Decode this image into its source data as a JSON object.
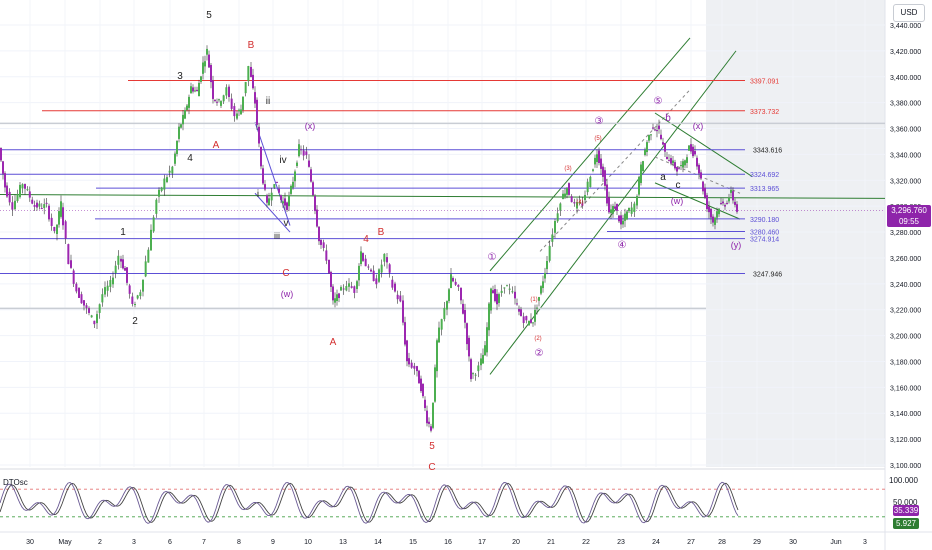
{
  "currency": "USD",
  "colors": {
    "up": "#4caf50",
    "down": "#9c27b0",
    "red_line": "#e53935",
    "blue_line": "#5c4fd6",
    "green_line": "#2e7d32",
    "wave_black": "#222222",
    "wave_red": "#d32f2f",
    "wave_purple": "#8e24aa",
    "price_tag": "#8e24aa",
    "osc_k": "#6b5b95",
    "osc_d": "#444444",
    "osc_tag_purple": "#8e24aa",
    "osc_tag_green": "#2e7d32"
  },
  "price_axis": {
    "min": 3100,
    "max": 3440,
    "step": 20,
    "ticks": [
      "3,440.000",
      "3,420.000",
      "3,400.000",
      "3,380.000",
      "3,360.000",
      "3,340.000",
      "3,320.000",
      "3,300.000",
      "3,280.000",
      "3,260.000",
      "3,240.000",
      "3,220.000",
      "3,200.000",
      "3,180.000",
      "3,160.000",
      "3,140.000",
      "3,120.000",
      "3,100.000"
    ]
  },
  "time_axis": {
    "labels": [
      "30",
      "May",
      "2",
      "3",
      "6",
      "7",
      "8",
      "9",
      "10",
      "13",
      "14",
      "15",
      "16",
      "17",
      "20",
      "21",
      "22",
      "23",
      "24",
      "27",
      "28",
      "29",
      "30",
      "Jun",
      "3"
    ]
  },
  "current_price": {
    "value": 3296.76,
    "label": "3,296.760",
    "countdown": "09:55"
  },
  "level_lines": [
    {
      "label": "3397.091",
      "value": 3397.091,
      "color": "red"
    },
    {
      "label": "3373.732",
      "value": 3373.732,
      "color": "red"
    },
    {
      "label": "3343.616",
      "value": 3343.616,
      "color": "blue"
    },
    {
      "label": "3324.692",
      "value": 3324.692,
      "color": "blue"
    },
    {
      "label": "3313.965",
      "value": 3313.965,
      "color": "blue"
    },
    {
      "label": "3290.180",
      "value": 3290.18,
      "color": "blue"
    },
    {
      "label": "3280.460",
      "value": 3280.46,
      "color": "blue"
    },
    {
      "label": "3274.914",
      "value": 3274.914,
      "color": "blue"
    },
    {
      "label": "3247.946",
      "value": 3247.946,
      "color": "blue"
    }
  ],
  "wave_labels": [
    {
      "text": "5",
      "color": "black"
    },
    {
      "text": "3",
      "color": "black"
    },
    {
      "text": "4",
      "color": "black"
    },
    {
      "text": "1",
      "color": "black"
    },
    {
      "text": "2",
      "color": "black"
    },
    {
      "text": "B",
      "color": "red"
    },
    {
      "text": "A",
      "color": "red"
    },
    {
      "text": "C",
      "color": "red"
    },
    {
      "text": "ii",
      "color": "black"
    },
    {
      "text": "iv",
      "color": "black"
    },
    {
      "text": "i",
      "color": "black"
    },
    {
      "text": "v",
      "color": "black"
    },
    {
      "text": "iii",
      "color": "black"
    },
    {
      "text": "(x)",
      "color": "purple"
    },
    {
      "text": "(w)",
      "color": "purple"
    },
    {
      "text": "4",
      "color": "red"
    },
    {
      "text": "B",
      "color": "red"
    },
    {
      "text": "A",
      "color": "red"
    },
    {
      "text": "5",
      "color": "red"
    },
    {
      "text": "C",
      "color": "red"
    },
    {
      "text": "①",
      "color": "purple"
    },
    {
      "text": "②",
      "color": "purple"
    },
    {
      "text": "③",
      "color": "purple"
    },
    {
      "text": "④",
      "color": "purple"
    },
    {
      "text": "⑤",
      "color": "purple"
    },
    {
      "text": "(1)",
      "color": "red"
    },
    {
      "text": "(2)",
      "color": "red"
    },
    {
      "text": "(3)",
      "color": "red"
    },
    {
      "text": "(4)",
      "color": "red"
    },
    {
      "text": "(5)",
      "color": "red"
    },
    {
      "text": "a",
      "color": "black"
    },
    {
      "text": "b",
      "color": "purple"
    },
    {
      "text": "c",
      "color": "black"
    },
    {
      "text": "(x)",
      "color": "purple"
    },
    {
      "text": "(w)",
      "color": "purple"
    },
    {
      "text": "(y)",
      "color": "purple"
    }
  ],
  "oscillator": {
    "name": "DTOsc",
    "levels": [
      "100.000",
      "50.000"
    ],
    "value_k": "35.339",
    "value_d": "5.927"
  },
  "chart_data": {
    "type": "candlestick",
    "instrument_currency": "USD",
    "ylim": [
      3100,
      3440
    ],
    "path_points": [
      [
        0,
        3345
      ],
      [
        6,
        3315
      ],
      [
        14,
        3300
      ],
      [
        24,
        3318
      ],
      [
        36,
        3300
      ],
      [
        48,
        3300
      ],
      [
        56,
        3278
      ],
      [
        62,
        3302
      ],
      [
        70,
        3258
      ],
      [
        78,
        3235
      ],
      [
        88,
        3220
      ],
      [
        96,
        3210
      ],
      [
        104,
        3232
      ],
      [
        112,
        3240
      ],
      [
        120,
        3262
      ],
      [
        126,
        3250
      ],
      [
        134,
        3222
      ],
      [
        142,
        3235
      ],
      [
        150,
        3268
      ],
      [
        158,
        3305
      ],
      [
        166,
        3320
      ],
      [
        174,
        3330
      ],
      [
        180,
        3360
      ],
      [
        186,
        3372
      ],
      [
        192,
        3392
      ],
      [
        198,
        3388
      ],
      [
        204,
        3410
      ],
      [
        208,
        3420
      ],
      [
        214,
        3385
      ],
      [
        220,
        3380
      ],
      [
        228,
        3390
      ],
      [
        236,
        3370
      ],
      [
        242,
        3375
      ],
      [
        250,
        3408
      ],
      [
        256,
        3380
      ],
      [
        262,
        3330
      ],
      [
        268,
        3300
      ],
      [
        276,
        3320
      ],
      [
        282,
        3305
      ],
      [
        288,
        3300
      ],
      [
        294,
        3320
      ],
      [
        300,
        3345
      ],
      [
        308,
        3338
      ],
      [
        314,
        3310
      ],
      [
        320,
        3275
      ],
      [
        328,
        3260
      ],
      [
        334,
        3225
      ],
      [
        340,
        3232
      ],
      [
        348,
        3240
      ],
      [
        356,
        3235
      ],
      [
        362,
        3265
      ],
      [
        370,
        3250
      ],
      [
        378,
        3242
      ],
      [
        386,
        3262
      ],
      [
        394,
        3238
      ],
      [
        402,
        3225
      ],
      [
        408,
        3180
      ],
      [
        416,
        3175
      ],
      [
        422,
        3160
      ],
      [
        428,
        3135
      ],
      [
        432,
        3128
      ],
      [
        438,
        3195
      ],
      [
        446,
        3220
      ],
      [
        452,
        3245
      ],
      [
        460,
        3235
      ],
      [
        466,
        3210
      ],
      [
        472,
        3168
      ],
      [
        480,
        3175
      ],
      [
        486,
        3190
      ],
      [
        492,
        3238
      ],
      [
        498,
        3225
      ],
      [
        506,
        3240
      ],
      [
        514,
        3232
      ],
      [
        520,
        3218
      ],
      [
        528,
        3210
      ],
      [
        534,
        3212
      ],
      [
        540,
        3230
      ],
      [
        546,
        3250
      ],
      [
        554,
        3280
      ],
      [
        562,
        3305
      ],
      [
        568,
        3315
      ],
      [
        576,
        3300
      ],
      [
        584,
        3302
      ],
      [
        592,
        3325
      ],
      [
        598,
        3342
      ],
      [
        604,
        3325
      ],
      [
        610,
        3295
      ],
      [
        616,
        3300
      ],
      [
        622,
        3285
      ],
      [
        628,
        3295
      ],
      [
        636,
        3300
      ],
      [
        642,
        3330
      ],
      [
        648,
        3350
      ],
      [
        654,
        3362
      ],
      [
        660,
        3358
      ],
      [
        666,
        3340
      ],
      [
        672,
        3335
      ],
      [
        678,
        3328
      ],
      [
        684,
        3332
      ],
      [
        690,
        3345
      ],
      [
        696,
        3340
      ],
      [
        702,
        3320
      ],
      [
        708,
        3300
      ],
      [
        714,
        3288
      ],
      [
        720,
        3300
      ],
      [
        726,
        3302
      ],
      [
        732,
        3310
      ],
      [
        738,
        3297
      ]
    ]
  }
}
